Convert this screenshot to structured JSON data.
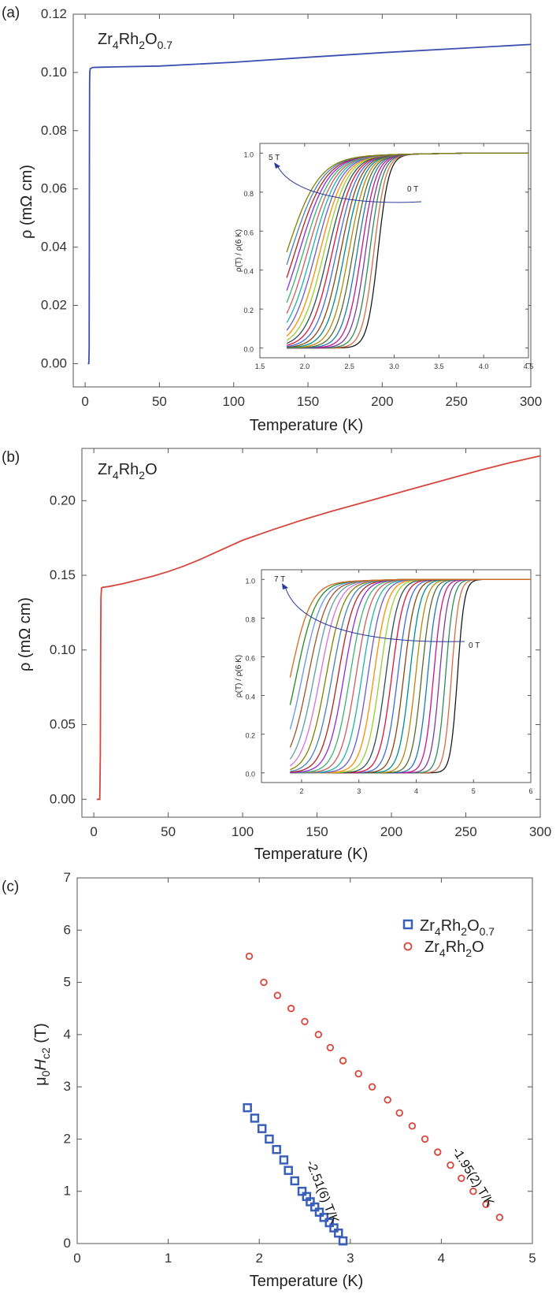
{
  "chart_data": [
    {
      "panel": "(a)",
      "type": "line",
      "sample_label": {
        "base": "Zr",
        "sub1": "4",
        "mid": "Rh",
        "sub2": "2",
        "tail": "O",
        "sub3": "0.7"
      },
      "xlabel": "Temperature (K)",
      "ylabel": "ρ (mΩ cm)",
      "xlim": [
        -8,
        300
      ],
      "ylim": [
        -0.008,
        0.12
      ],
      "xticks": [
        0,
        50,
        100,
        150,
        200,
        250,
        300
      ],
      "yticks": [
        0.0,
        0.02,
        0.04,
        0.06,
        0.08,
        0.1,
        0.12
      ],
      "ytick_labels": [
        "0.00",
        "0.02",
        "0.04",
        "0.06",
        "0.08",
        "0.10",
        "0.12"
      ],
      "series": [
        {
          "name": "Zr4Rh2O0.7",
          "color": "#3b4fb0",
          "x": [
            1.8,
            2.2,
            2.5,
            2.7,
            2.8,
            2.9,
            3.0,
            3.2,
            3.5,
            5,
            10,
            20,
            50,
            100,
            150,
            200,
            250,
            300
          ],
          "y": [
            0.0,
            0.0,
            0.0,
            0.005,
            0.04,
            0.08,
            0.097,
            0.1005,
            0.1013,
            0.1017,
            0.1018,
            0.1019,
            0.1022,
            0.1035,
            0.1052,
            0.1068,
            0.1082,
            0.1096
          ]
        }
      ],
      "inset": {
        "xlim": [
          1.5,
          4.5
        ],
        "ylim": [
          -0.05,
          1.05
        ],
        "xticks": [
          1.5,
          2.0,
          2.5,
          3.0,
          3.5,
          4.0,
          4.5
        ],
        "xtick_labels": [
          "1.5",
          "2.0",
          "2.5",
          "3.0",
          "3.5",
          "4.0",
          "4.5"
        ],
        "yticks": [
          0.0,
          0.2,
          0.4,
          0.6,
          0.8,
          1.0
        ],
        "ytick_labels": [
          "0.0",
          "0.2",
          "0.4",
          "0.6",
          "0.8",
          "1.0"
        ],
        "ylabel": "ρ(T) / ρ(6 K)",
        "field_high": "5 T",
        "field_low": "0 T",
        "curve_count": 23,
        "midpoint_start": 2.82,
        "midpoint_end": 1.8
      }
    },
    {
      "panel": "(b)",
      "type": "line",
      "sample_label": {
        "base": "Zr",
        "sub1": "4",
        "mid": "Rh",
        "sub2": "2",
        "tail": "O",
        "sub3": ""
      },
      "xlabel": "Temperature (K)",
      "ylabel": "ρ (mΩ cm)",
      "xlim": [
        -8,
        300
      ],
      "ylim": [
        -0.012,
        0.235
      ],
      "xticks": [
        0,
        50,
        100,
        150,
        200,
        250,
        300
      ],
      "yticks": [
        0.0,
        0.05,
        0.1,
        0.15,
        0.2
      ],
      "ytick_labels": [
        "0.00",
        "0.05",
        "0.10",
        "0.15",
        "0.20"
      ],
      "series": [
        {
          "name": "Zr4Rh2O",
          "color": "#d9453b",
          "x": [
            2,
            3,
            4,
            4.4,
            4.6,
            4.8,
            5.2,
            6,
            10,
            20,
            30,
            40,
            50,
            60,
            70,
            80,
            90,
            100,
            120,
            140,
            160,
            180,
            200,
            220,
            240,
            260,
            280,
            300
          ],
          "y": [
            0.0,
            0.0,
            0.0,
            0.03,
            0.1,
            0.135,
            0.1415,
            0.142,
            0.1425,
            0.1445,
            0.147,
            0.1495,
            0.1525,
            0.156,
            0.16,
            0.1645,
            0.169,
            0.1735,
            0.1805,
            0.187,
            0.193,
            0.1985,
            0.204,
            0.2095,
            0.215,
            0.2205,
            0.2255,
            0.23
          ]
        }
      ],
      "inset": {
        "xlim": [
          1.3,
          6.0
        ],
        "ylim": [
          -0.05,
          1.05
        ],
        "xticks": [
          2,
          3,
          4,
          5,
          6
        ],
        "xtick_labels": [
          "2",
          "3",
          "4",
          "5",
          "6"
        ],
        "yticks": [
          0.0,
          0.2,
          0.4,
          0.6,
          0.8,
          1.0
        ],
        "ytick_labels": [
          "0.0",
          "0.2",
          "0.4",
          "0.6",
          "0.8",
          "1.0"
        ],
        "ylabel": "ρ(T) / ρ(6 K)",
        "field_high": "7 T",
        "field_low": "0 T",
        "curve_count": 29,
        "midpoint_start": 4.72,
        "midpoint_end": 1.8
      }
    },
    {
      "panel": "(c)",
      "type": "scatter",
      "xlabel": "Temperature (K)",
      "ylabel_parts": {
        "mu": "μ",
        "sub0": "0",
        "H": "H",
        "subc2": "c2",
        "unit": " (T)"
      },
      "xlim": [
        0,
        5
      ],
      "ylim": [
        0,
        7
      ],
      "xticks": [
        0,
        1,
        2,
        3,
        4,
        5
      ],
      "yticks": [
        0,
        1,
        2,
        3,
        4,
        5,
        6,
        7
      ],
      "series": [
        {
          "name": "Zr4Rh2O0.7",
          "marker": "square",
          "color": "#3a5fb8",
          "legend": {
            "base": "Zr",
            "sub1": "4",
            "mid": "Rh",
            "sub2": "2",
            "tail": "O",
            "sub3": "0.7"
          },
          "x": [
            1.87,
            1.95,
            2.03,
            2.11,
            2.19,
            2.27,
            2.32,
            2.39,
            2.47,
            2.52,
            2.56,
            2.61,
            2.66,
            2.71,
            2.77,
            2.82,
            2.87,
            2.92
          ],
          "y": [
            2.6,
            2.4,
            2.2,
            2.0,
            1.8,
            1.6,
            1.4,
            1.2,
            1.0,
            0.9,
            0.8,
            0.7,
            0.6,
            0.5,
            0.4,
            0.3,
            0.2,
            0.05
          ]
        },
        {
          "name": "Zr4Rh2O",
          "marker": "circle",
          "color": "#d9453b",
          "legend": {
            "base": "Zr",
            "sub1": "4",
            "mid": "Rh",
            "sub2": "2",
            "tail": "O",
            "sub3": ""
          },
          "x": [
            1.89,
            2.05,
            2.2,
            2.35,
            2.5,
            2.65,
            2.78,
            2.92,
            3.09,
            3.24,
            3.41,
            3.54,
            3.68,
            3.82,
            3.96,
            4.1,
            4.22,
            4.35,
            4.49,
            4.64
          ],
          "y": [
            5.5,
            5.0,
            4.75,
            4.5,
            4.25,
            4.0,
            3.75,
            3.5,
            3.25,
            3.0,
            2.75,
            2.5,
            2.25,
            2.0,
            1.75,
            1.5,
            1.25,
            1.0,
            0.75,
            0.5
          ]
        }
      ],
      "annotations": [
        "-2.51(6) T/K",
        "-1.95(2) T/K"
      ]
    }
  ],
  "colors": {
    "blue": "#3b4fb0",
    "red": "#d9453b",
    "axis": "#555555"
  }
}
